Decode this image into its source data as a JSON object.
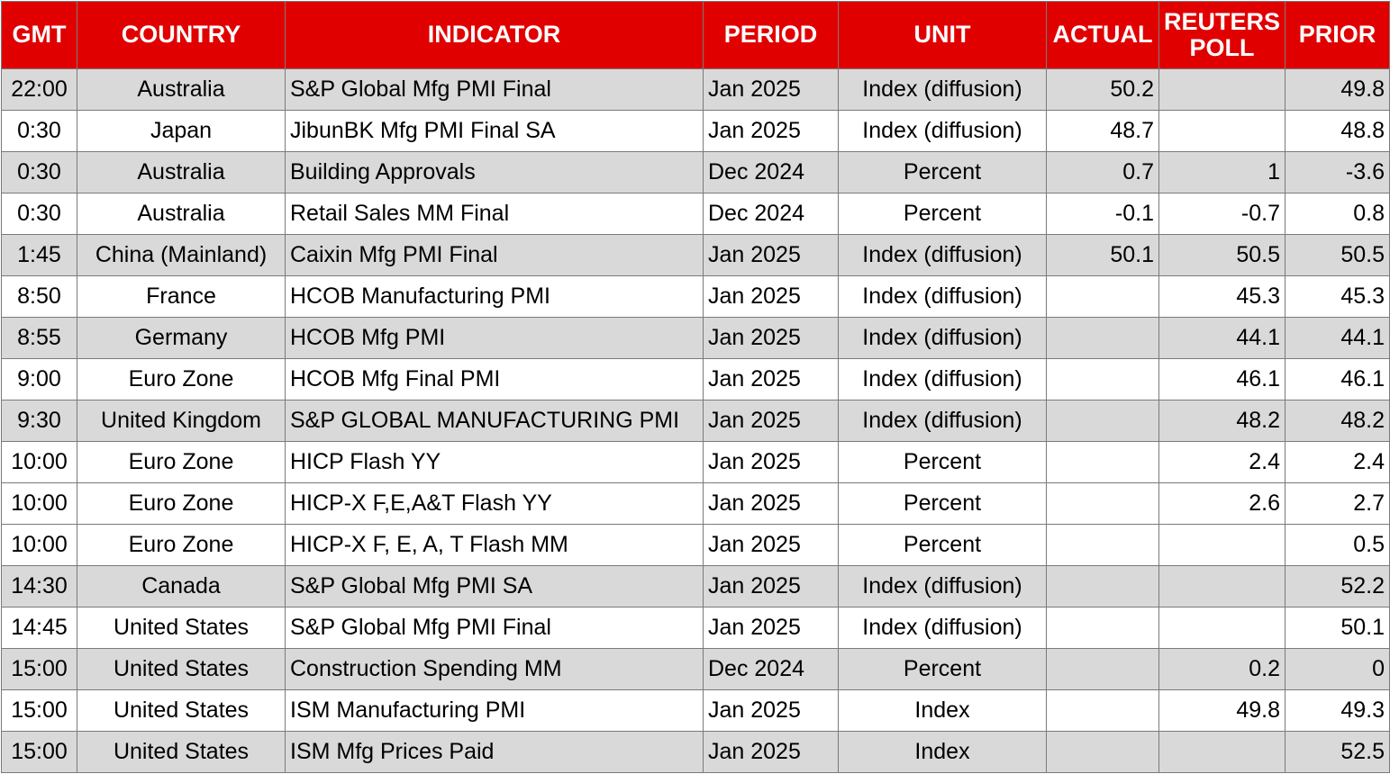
{
  "columns": {
    "gmt": "GMT",
    "country": "COUNTRY",
    "indicator": "INDICATOR",
    "period": "PERIOD",
    "unit": "UNIT",
    "actual": "ACTUAL",
    "poll_line1": "REUTERS",
    "poll_line2": "POLL",
    "prior": "PRIOR"
  },
  "colors": {
    "header_bg": "#e00000",
    "header_text": "#ffffff",
    "row_shade": "#d9d9d9",
    "row_plain": "#ffffff"
  },
  "rows": [
    {
      "gmt": "22:00",
      "country": "Australia",
      "indicator": "S&P Global Mfg PMI Final",
      "period": "Jan 2025",
      "unit": "Index (diffusion)",
      "actual": "50.2",
      "poll": "",
      "prior": "49.8",
      "shaded": true
    },
    {
      "gmt": "0:30",
      "country": "Japan",
      "indicator": "JibunBK Mfg PMI Final SA",
      "period": "Jan 2025",
      "unit": "Index (diffusion)",
      "actual": "48.7",
      "poll": "",
      "prior": "48.8",
      "shaded": false
    },
    {
      "gmt": "0:30",
      "country": "Australia",
      "indicator": "Building Approvals",
      "period": "Dec 2024",
      "unit": "Percent",
      "actual": "0.7",
      "poll": "1",
      "prior": "-3.6",
      "shaded": true
    },
    {
      "gmt": "0:30",
      "country": "Australia",
      "indicator": "Retail Sales MM Final",
      "period": "Dec 2024",
      "unit": "Percent",
      "actual": "-0.1",
      "poll": "-0.7",
      "prior": "0.8",
      "shaded": false
    },
    {
      "gmt": "1:45",
      "country": "China (Mainland)",
      "indicator": "Caixin Mfg PMI Final",
      "period": "Jan 2025",
      "unit": "Index (diffusion)",
      "actual": "50.1",
      "poll": "50.5",
      "prior": "50.5",
      "shaded": true
    },
    {
      "gmt": "8:50",
      "country": "France",
      "indicator": "HCOB Manufacturing PMI",
      "period": "Jan 2025",
      "unit": "Index (diffusion)",
      "actual": "",
      "poll": "45.3",
      "prior": "45.3",
      "shaded": false
    },
    {
      "gmt": "8:55",
      "country": "Germany",
      "indicator": "HCOB Mfg PMI",
      "period": "Jan 2025",
      "unit": "Index (diffusion)",
      "actual": "",
      "poll": "44.1",
      "prior": "44.1",
      "shaded": true
    },
    {
      "gmt": "9:00",
      "country": "Euro Zone",
      "indicator": "HCOB Mfg Final PMI",
      "period": "Jan 2025",
      "unit": "Index (diffusion)",
      "actual": "",
      "poll": "46.1",
      "prior": "46.1",
      "shaded": false
    },
    {
      "gmt": "9:30",
      "country": "United Kingdom",
      "indicator": "S&P GLOBAL MANUFACTURING PMI",
      "period": "Jan 2025",
      "unit": "Index (diffusion)",
      "actual": "",
      "poll": "48.2",
      "prior": "48.2",
      "shaded": true
    },
    {
      "gmt": "10:00",
      "country": "Euro Zone",
      "indicator": "HICP Flash YY",
      "period": "Jan 2025",
      "unit": "Percent",
      "actual": "",
      "poll": "2.4",
      "prior": "2.4",
      "shaded": false
    },
    {
      "gmt": "10:00",
      "country": "Euro Zone",
      "indicator": "HICP-X F,E,A&T Flash YY",
      "period": "Jan 2025",
      "unit": "Percent",
      "actual": "",
      "poll": "2.6",
      "prior": "2.7",
      "shaded": false
    },
    {
      "gmt": "10:00",
      "country": "Euro Zone",
      "indicator": "HICP-X F, E, A, T Flash MM",
      "period": "Jan 2025",
      "unit": "Percent",
      "actual": "",
      "poll": "",
      "prior": "0.5",
      "shaded": false
    },
    {
      "gmt": "14:30",
      "country": "Canada",
      "indicator": "S&P Global Mfg PMI SA",
      "period": "Jan 2025",
      "unit": "Index (diffusion)",
      "actual": "",
      "poll": "",
      "prior": "52.2",
      "shaded": true
    },
    {
      "gmt": "14:45",
      "country": "United States",
      "indicator": "S&P Global Mfg PMI Final",
      "period": "Jan 2025",
      "unit": "Index (diffusion)",
      "actual": "",
      "poll": "",
      "prior": "50.1",
      "shaded": false
    },
    {
      "gmt": "15:00",
      "country": "United States",
      "indicator": "Construction Spending MM",
      "period": "Dec 2024",
      "unit": "Percent",
      "actual": "",
      "poll": "0.2",
      "prior": "0",
      "shaded": true
    },
    {
      "gmt": "15:00",
      "country": "United States",
      "indicator": "ISM Manufacturing PMI",
      "period": "Jan 2025",
      "unit": "Index",
      "actual": "",
      "poll": "49.8",
      "prior": "49.3",
      "shaded": false
    },
    {
      "gmt": "15:00",
      "country": "United States",
      "indicator": "ISM Mfg Prices Paid",
      "period": "Jan 2025",
      "unit": "Index",
      "actual": "",
      "poll": "",
      "prior": "52.5",
      "shaded": true
    }
  ]
}
